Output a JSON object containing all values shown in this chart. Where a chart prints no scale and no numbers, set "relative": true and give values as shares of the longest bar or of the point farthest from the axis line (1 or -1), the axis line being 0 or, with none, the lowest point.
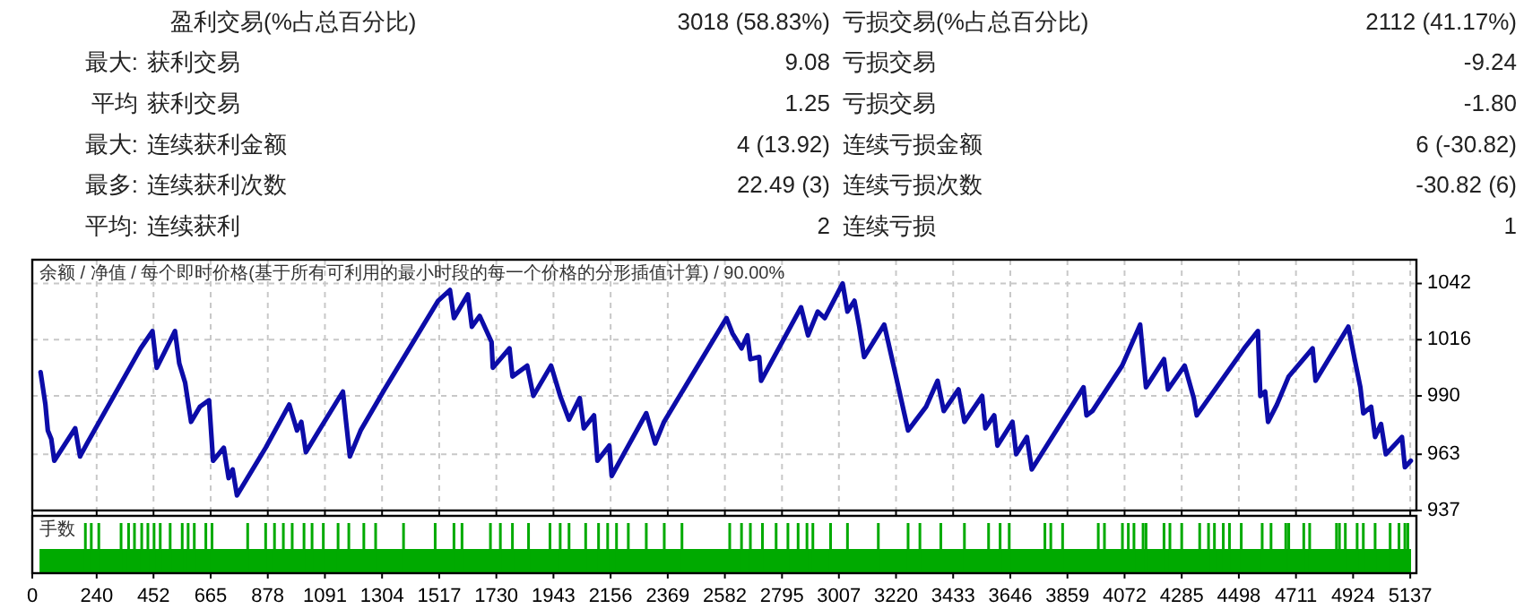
{
  "chart_data": [
    {
      "type": "other",
      "annotations": [
        "盈利交易(%占总百分比)",
        "3018 (58.83%)",
        "亏损交易(%占总百分比)",
        "2112 (41.17%)",
        "最大:",
        "获利交易",
        "9.08",
        "亏损交易",
        "-9.24",
        "平均",
        "获利交易",
        "1.25",
        "亏损交易",
        "-1.80",
        "最大:",
        "连续获利金额",
        "4 (13.92)",
        "连续亏损金额",
        "6 (-30.82)",
        "最多:",
        "连续获利次数",
        "22.49 (3)",
        "连续亏损次数",
        "-30.82 (6)",
        "平均:",
        "连续获利",
        "2",
        "连续亏损",
        "1"
      ]
    },
    {
      "type": "line",
      "title": "余额 / 净值 / 每个即时价格(基于所有可利用的最小时段的每一个价格的分形插值计算) / 90.00%",
      "xlim": [
        0,
        5160
      ],
      "xticks": [
        0,
        240,
        452,
        665,
        878,
        1091,
        1304,
        1517,
        1730,
        1943,
        2156,
        2369,
        2582,
        2795,
        3007,
        3220,
        3433,
        3646,
        3859,
        4072,
        4285,
        4498,
        4711,
        4924,
        5137
      ],
      "ylim": [
        937,
        1053
      ],
      "yticks": [
        937,
        963,
        990,
        1016,
        1042
      ],
      "grid": true,
      "tick_labels": "y",
      "series": [
        {
          "color": "#0c0ca8",
          "x": [
            31,
            49,
            58,
            71,
            82,
            160,
            178,
            204,
            404,
            448,
            464,
            492,
            532,
            548,
            570,
            592,
            625,
            659,
            674,
            714,
            732,
            747,
            763,
            870,
            958,
            987,
            1003,
            1020,
            1069,
            1158,
            1169,
            1184,
            1224,
            1313,
            1513,
            1557,
            1572,
            1624,
            1639,
            1668,
            1712,
            1717,
            1779,
            1790,
            1845,
            1868,
            1934,
            1968,
            2001,
            2041,
            2056,
            2094,
            2107,
            2151,
            2160,
            2289,
            2322,
            2355,
            2588,
            2610,
            2644,
            2666,
            2677,
            2710,
            2717,
            2866,
            2892,
            2928,
            2954,
            3021,
            3039,
            3065,
            3083,
            3101,
            3176,
            3220,
            3265,
            3332,
            3375,
            3398,
            3453,
            3475,
            3541,
            3553,
            3586,
            3598,
            3654,
            3668,
            3708,
            3726,
            3919,
            3930,
            3952,
            4063,
            4130,
            4152,
            4219,
            4234,
            4296,
            4330,
            4341,
            4518,
            4569,
            4578,
            4596,
            4607,
            4640,
            4684,
            4773,
            4784,
            4906,
            4928,
            4951,
            4962,
            4991,
            5006,
            5028,
            5046,
            5106,
            5117,
            5139
          ],
          "values": [
            1001,
            986,
            974,
            970,
            960,
            975,
            962,
            968,
            1012,
            1020,
            1003,
            1010,
            1020,
            1005,
            996,
            978,
            985,
            988,
            960,
            966,
            952,
            956,
            944,
            966,
            986,
            974,
            978,
            964,
            974,
            992,
            979,
            962,
            974,
            993,
            1034,
            1039,
            1026,
            1037,
            1022,
            1027,
            1015,
            1003,
            1012,
            999,
            1004,
            990,
            1004,
            990,
            979,
            989,
            975,
            981,
            960,
            967,
            953,
            982,
            968,
            978,
            1026,
            1019,
            1012,
            1018,
            1007,
            1008,
            997,
            1031,
            1018,
            1029,
            1026,
            1042,
            1029,
            1034,
            1022,
            1008,
            1023,
            999,
            974,
            985,
            997,
            983,
            993,
            978,
            990,
            975,
            981,
            967,
            978,
            963,
            971,
            956,
            994,
            981,
            983,
            1004,
            1023,
            994,
            1007,
            993,
            1004,
            989,
            981,
            1012,
            1020,
            990,
            992,
            978,
            986,
            999,
            1012,
            997,
            1022,
            1008,
            994,
            982,
            985,
            971,
            977,
            963,
            971,
            957,
            960
          ]
        }
      ]
    },
    {
      "type": "bar",
      "title": "手数",
      "relative": true,
      "xlim": [
        0,
        5160
      ],
      "xticks": [
        0,
        240,
        452,
        665,
        878,
        1091,
        1304,
        1517,
        1730,
        1943,
        2156,
        2369,
        2582,
        2795,
        3007,
        3220,
        3433,
        3646,
        3859,
        4072,
        4285,
        4498,
        4711,
        4924,
        5137
      ],
      "tick_labels": "x",
      "grid": false,
      "series": [
        {
          "type": "area",
          "color": "#00aa00",
          "x": [
            27,
            5140
          ],
          "values": [
            0.48,
            0.48
          ]
        },
        {
          "type": "bar",
          "color": "#00aa00",
          "x": [
            198,
            220,
            248,
            331,
            359,
            381,
            408,
            431,
            454,
            477,
            514,
            559,
            581,
            604,
            647,
            670,
            803,
            870,
            903,
            936,
            969,
            1013,
            1043,
            1085,
            1140,
            1180,
            1236,
            1280,
            1384,
            1502,
            1572,
            1602,
            1708,
            1745,
            1790,
            1850,
            1930,
            1968,
            2001,
            2063,
            2111,
            2145,
            2178,
            2222,
            2289,
            2356,
            2422,
            2600,
            2644,
            2677,
            2722,
            2773,
            2817,
            2855,
            2888,
            2910,
            2976,
            3039,
            3154,
            3265,
            3309,
            3387,
            3475,
            3565,
            3608,
            3642,
            3775,
            3797,
            3841,
            3974,
            3997,
            4064,
            4086,
            4107,
            4141,
            4152,
            4219,
            4241,
            4285,
            4352,
            4385,
            4407,
            4440,
            4463,
            4507,
            4585,
            4618,
            4673,
            4684,
            4740,
            4762,
            4862,
            4873,
            4895,
            4939,
            4962,
            5006,
            5062,
            5095,
            5117,
            5128
          ],
          "values": [
            1,
            1,
            1,
            1,
            1,
            1,
            1,
            1,
            1,
            1,
            1,
            1,
            1,
            1,
            1,
            1,
            1,
            1,
            1,
            1,
            1,
            1,
            1,
            1,
            1,
            1,
            1,
            1,
            1,
            1,
            1,
            1,
            1,
            1,
            1,
            1,
            1,
            1,
            1,
            1,
            1,
            1,
            1,
            1,
            1,
            1,
            1,
            1,
            1,
            1,
            1,
            1,
            1,
            1,
            1,
            1,
            1,
            1,
            1,
            1,
            1,
            1,
            1,
            1,
            1,
            1,
            1,
            1,
            1,
            1,
            1,
            1,
            1,
            1,
            1,
            1,
            1,
            1,
            1,
            1,
            1,
            1,
            1,
            1,
            1,
            1,
            1,
            1,
            1,
            1,
            1,
            1,
            1,
            1,
            1,
            1,
            1,
            1,
            1,
            1,
            1
          ]
        }
      ]
    }
  ]
}
